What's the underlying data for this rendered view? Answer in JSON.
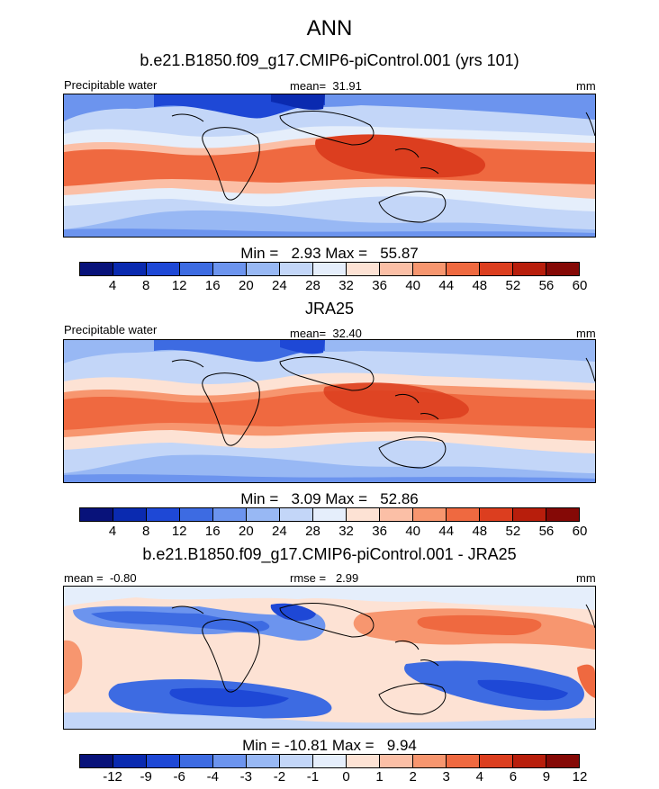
{
  "title": "ANN",
  "model_case": "b.e21.B1850.f09_g17.CMIP6-piControl.001 (yrs 101)",
  "obs_name": "JRA25",
  "diff_title": "b.e21.B1850.f09_g17.CMIP6-piControl.001 - JRA25",
  "chart_data": [
    {
      "type": "heatmap",
      "panel": "model",
      "variable": "Precipitable water",
      "units": "mm",
      "mean_label": "mean=",
      "mean": "31.91",
      "min_label": "Min =",
      "min": "2.93",
      "max_label": "Max =",
      "max": "55.87",
      "levels": [
        "4",
        "8",
        "12",
        "16",
        "20",
        "24",
        "28",
        "32",
        "36",
        "40",
        "44",
        "48",
        "52",
        "56",
        "60"
      ],
      "colors": [
        "#08127a",
        "#0a2ab0",
        "#1e48d6",
        "#3d6be2",
        "#6c94ee",
        "#98b8f4",
        "#c3d6f8",
        "#e5eefb",
        "#fde2d4",
        "#fbbfa6",
        "#f7966f",
        "#ef6940",
        "#dc3e1f",
        "#b81e0c",
        "#850906"
      ]
    },
    {
      "type": "heatmap",
      "panel": "obs",
      "variable": "Precipitable water",
      "units": "mm",
      "mean_label": "mean=",
      "mean": "32.40",
      "min_label": "Min =",
      "min": "3.09",
      "max_label": "Max =",
      "max": "52.86",
      "levels": [
        "4",
        "8",
        "12",
        "16",
        "20",
        "24",
        "28",
        "32",
        "36",
        "40",
        "44",
        "48",
        "52",
        "56",
        "60"
      ],
      "colors": [
        "#08127a",
        "#0a2ab0",
        "#1e48d6",
        "#3d6be2",
        "#6c94ee",
        "#98b8f4",
        "#c3d6f8",
        "#e5eefb",
        "#fde2d4",
        "#fbbfa6",
        "#f7966f",
        "#ef6940",
        "#dc3e1f",
        "#b81e0c",
        "#850906"
      ]
    },
    {
      "type": "heatmap",
      "panel": "difference",
      "units": "mm",
      "mean_label": "mean =",
      "mean": "-0.80",
      "rmse_label": "rmse =",
      "rmse": "2.99",
      "min_label": "Min =",
      "min": "-10.81",
      "max_label": "Max =",
      "max": "9.94",
      "levels": [
        "-12",
        "-9",
        "-6",
        "-4",
        "-3",
        "-2",
        "-1",
        "0",
        "1",
        "2",
        "3",
        "4",
        "6",
        "9",
        "12"
      ],
      "colors": [
        "#08127a",
        "#0a2ab0",
        "#1e48d6",
        "#3d6be2",
        "#6c94ee",
        "#98b8f4",
        "#c3d6f8",
        "#e5eefb",
        "#fde2d4",
        "#fbbfa6",
        "#f7966f",
        "#ef6940",
        "#dc3e1f",
        "#b81e0c",
        "#850906"
      ]
    }
  ]
}
